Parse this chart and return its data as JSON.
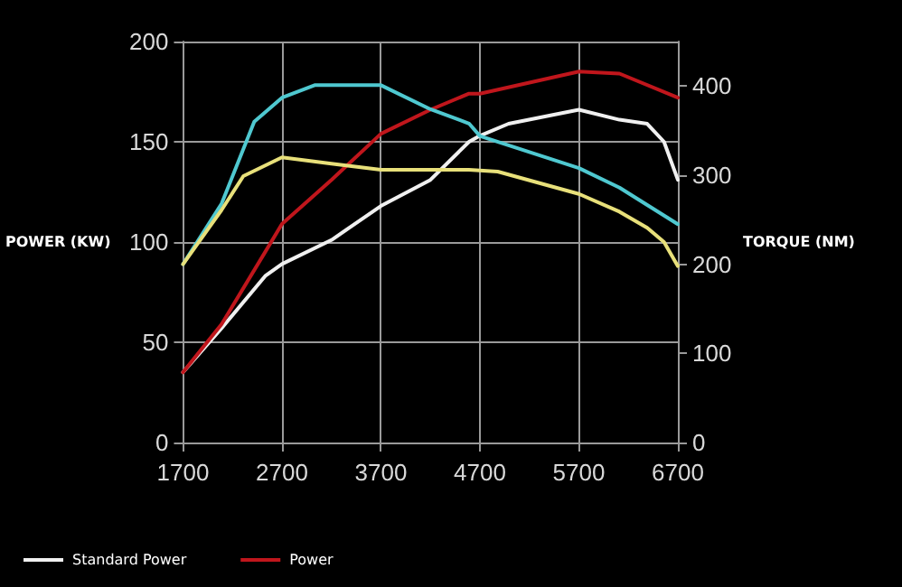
{
  "chart_data": {
    "type": "line",
    "ylabel": "POWER (KW)",
    "y2label": "TORQUE (NM)",
    "xlim": [
      1700,
      6700
    ],
    "xticks": [
      1700,
      2700,
      3700,
      4700,
      5700,
      6700
    ],
    "ylim": [
      0,
      200
    ],
    "yticks": [
      0,
      50,
      100,
      150,
      200
    ],
    "y2lim": [
      0,
      450
    ],
    "y2ticks": [
      0,
      100,
      200,
      300,
      400
    ],
    "grid": true,
    "legend": "bottom left",
    "marker": "none",
    "line_style": "solid",
    "series": [
      {
        "name": "Standard Power",
        "color": "#f0f0f0",
        "x": [
          1700,
          2090,
          2530,
          2700,
          3200,
          3700,
          4200,
          4590,
          4700,
          4990,
          5700,
          6110,
          6390,
          6560,
          6700
        ],
        "values": [
          35,
          57,
          83,
          89,
          101,
          118,
          131,
          150,
          153,
          159,
          166,
          161,
          159,
          150,
          131
        ]
      },
      {
        "name": "Power",
        "color": "#c0161c",
        "x": [
          1700,
          2090,
          2530,
          2700,
          3200,
          3700,
          4200,
          4590,
          4700,
          5700,
          6110,
          6700
        ],
        "values": [
          35,
          59,
          95,
          109,
          131,
          154,
          166,
          174,
          174,
          185,
          184,
          172
        ]
      },
      {
        "color": "#4fc8d0",
        "axis": "y2",
        "x": [
          1700,
          2090,
          2420,
          2700,
          3030,
          3700,
          4200,
          4590,
          4700,
          5700,
          6110,
          6700
        ],
        "values": [
          200,
          268,
          360,
          387,
          401,
          401,
          374,
          358,
          344,
          308,
          286,
          245
        ]
      },
      {
        "color": "#e8e07a",
        "axis": "y2",
        "x": [
          1700,
          2090,
          2310,
          2700,
          3200,
          3700,
          4590,
          4880,
          5700,
          6110,
          6390,
          6560,
          6700
        ],
        "values": [
          200,
          261,
          299,
          320,
          313,
          306,
          306,
          304,
          279,
          259,
          241,
          225,
          198
        ]
      }
    ]
  }
}
